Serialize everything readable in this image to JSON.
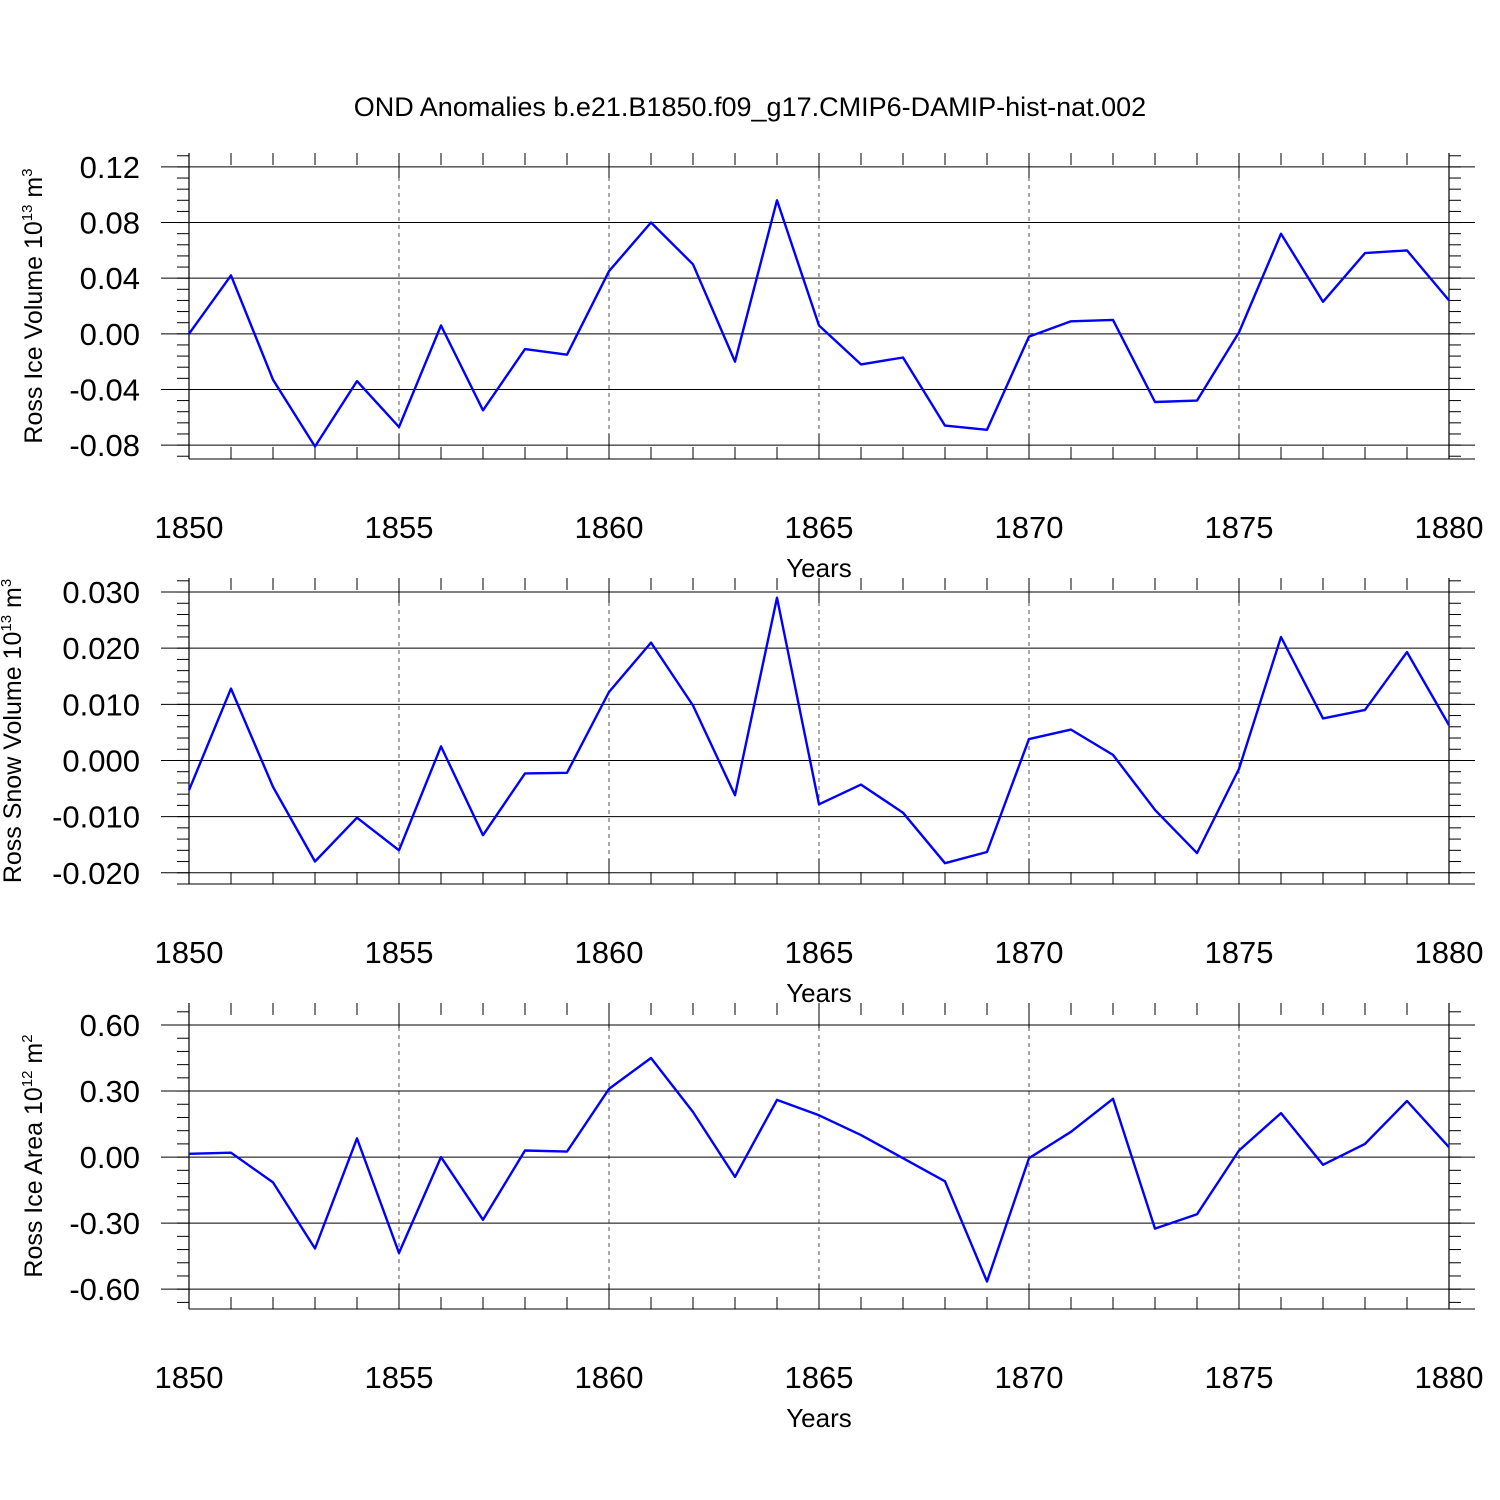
{
  "title": "OND Anomalies b.e21.B1850.f09_g17.CMIP6-DAMIP-hist-nat.002",
  "colors": {
    "series": "#0000ff",
    "axes": "#000000",
    "grid": "#555555"
  },
  "chart_data": [
    {
      "type": "line",
      "ylabel": {
        "text": "Ross Ice Volume 10",
        "exponent": "13",
        "unit": " m",
        "unit_exponent": "3"
      },
      "xlabel": "Years",
      "xlim": [
        1850,
        1880
      ],
      "ylim": [
        -0.09,
        0.13
      ],
      "x_ticks": [
        "1850",
        "1855",
        "1860",
        "1865",
        "1870",
        "1875",
        "1880"
      ],
      "y_ticks": [
        {
          "value": 0.12,
          "label": "0.12"
        },
        {
          "value": 0.08,
          "label": "0.08"
        },
        {
          "value": 0.04,
          "label": "0.04"
        },
        {
          "value": 0.0,
          "label": "0.00"
        },
        {
          "value": -0.04,
          "label": "-0.04"
        },
        {
          "value": -0.08,
          "label": "-0.08"
        }
      ],
      "grid": "dashed vertical at x ticks",
      "x": [
        1850,
        1851,
        1852,
        1853,
        1854,
        1855,
        1856,
        1857,
        1858,
        1859,
        1860,
        1861,
        1862,
        1863,
        1864,
        1865,
        1866,
        1867,
        1868,
        1869,
        1870,
        1871,
        1872,
        1873,
        1874,
        1875,
        1876,
        1877,
        1878,
        1879,
        1880
      ],
      "y": [
        0.0,
        0.042,
        -0.033,
        -0.081,
        -0.034,
        -0.067,
        0.006,
        -0.055,
        -0.011,
        -0.015,
        0.045,
        0.08,
        0.05,
        -0.02,
        0.096,
        0.006,
        -0.022,
        -0.017,
        -0.066,
        -0.069,
        -0.002,
        0.009,
        0.01,
        -0.049,
        -0.048,
        0.001,
        0.072,
        0.023,
        0.058,
        0.06,
        0.024
      ]
    },
    {
      "type": "line",
      "ylabel": {
        "text": "Ross Snow Volume 10",
        "exponent": "13",
        "unit": " m",
        "unit_exponent": "3"
      },
      "xlabel": "Years",
      "xlim": [
        1850,
        1880
      ],
      "ylim": [
        -0.022,
        0.0325
      ],
      "x_ticks": [
        "1850",
        "1855",
        "1860",
        "1865",
        "1870",
        "1875",
        "1880"
      ],
      "y_ticks": [
        {
          "value": 0.03,
          "label": "0.030"
        },
        {
          "value": 0.02,
          "label": "0.020"
        },
        {
          "value": 0.01,
          "label": "0.010"
        },
        {
          "value": 0.0,
          "label": "0.000"
        },
        {
          "value": -0.01,
          "label": "-0.010"
        },
        {
          "value": -0.02,
          "label": "-0.020"
        }
      ],
      "grid": "dashed vertical at x ticks",
      "x": [
        1850,
        1851,
        1852,
        1853,
        1854,
        1855,
        1856,
        1857,
        1858,
        1859,
        1860,
        1861,
        1862,
        1863,
        1864,
        1865,
        1866,
        1867,
        1868,
        1869,
        1870,
        1871,
        1872,
        1873,
        1874,
        1875,
        1876,
        1877,
        1878,
        1879,
        1880
      ],
      "y": [
        -0.0053,
        0.0128,
        -0.0047,
        -0.018,
        -0.0102,
        -0.016,
        0.0025,
        -0.0133,
        -0.0023,
        -0.0022,
        0.0122,
        0.021,
        0.0098,
        -0.0062,
        0.029,
        -0.0078,
        -0.0043,
        -0.0093,
        -0.0183,
        -0.0163,
        0.0038,
        0.0055,
        0.001,
        -0.0088,
        -0.0165,
        -0.0015,
        0.022,
        0.0075,
        0.009,
        0.0193,
        0.0063
      ]
    },
    {
      "type": "line",
      "ylabel": {
        "text": "Ross Ice Area 10",
        "exponent": "12",
        "unit": " m",
        "unit_exponent": "2"
      },
      "xlabel": "Years",
      "xlim": [
        1850,
        1880
      ],
      "ylim": [
        -0.69,
        0.7
      ],
      "x_ticks": [
        "1850",
        "1855",
        "1860",
        "1865",
        "1870",
        "1875",
        "1880"
      ],
      "y_ticks": [
        {
          "value": 0.6,
          "label": "0.60"
        },
        {
          "value": 0.3,
          "label": "0.30"
        },
        {
          "value": 0.0,
          "label": "0.00"
        },
        {
          "value": -0.3,
          "label": "-0.30"
        },
        {
          "value": -0.6,
          "label": "-0.60"
        }
      ],
      "grid": "dashed vertical at x ticks",
      "x": [
        1850,
        1851,
        1852,
        1853,
        1854,
        1855,
        1856,
        1857,
        1858,
        1859,
        1860,
        1861,
        1862,
        1863,
        1864,
        1865,
        1866,
        1867,
        1868,
        1869,
        1870,
        1871,
        1872,
        1873,
        1874,
        1875,
        1876,
        1877,
        1878,
        1879,
        1880
      ],
      "y": [
        0.015,
        0.02,
        -0.115,
        -0.415,
        0.085,
        -0.435,
        0.0,
        -0.285,
        0.03,
        0.025,
        0.31,
        0.45,
        0.205,
        -0.09,
        0.26,
        0.19,
        0.1,
        -0.005,
        -0.11,
        -0.565,
        -0.005,
        0.115,
        0.265,
        -0.325,
        -0.26,
        0.03,
        0.2,
        -0.035,
        0.06,
        0.255,
        0.045
      ]
    }
  ]
}
